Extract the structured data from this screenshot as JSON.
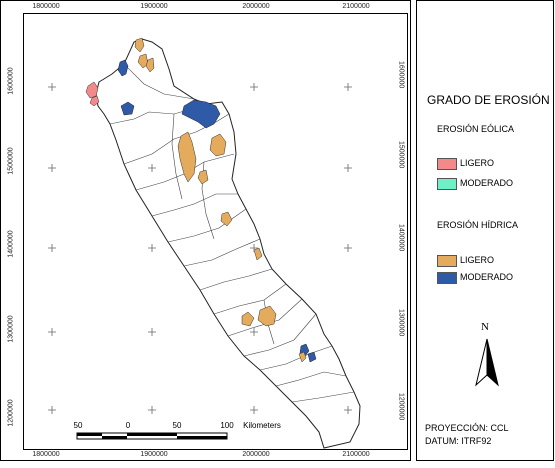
{
  "map": {
    "grid_x_labels": [
      "1800000",
      "1900000",
      "2000000",
      "2100000"
    ],
    "grid_y_labels": [
      "1600000",
      "1500000",
      "1400000",
      "1300000",
      "1200000"
    ],
    "scale_bar": {
      "labels": [
        "50",
        "0",
        "50",
        "100"
      ],
      "unit": "Kilometers"
    }
  },
  "legend": {
    "title": "GRADO DE EROSIÓN",
    "eolica": {
      "title": "EROSIÓN EÓLICA",
      "items": [
        {
          "label": "LIGERO",
          "color": "#f28a8c"
        },
        {
          "label": "MODERADO",
          "color": "#6ff0c6"
        }
      ]
    },
    "hidrica": {
      "title": "EROSIÓN HÍDRICA",
      "items": [
        {
          "label": "LIGERO",
          "color": "#e3ab5b"
        },
        {
          "label": "MODERADO",
          "color": "#2f5aa8"
        }
      ]
    },
    "north_label": "N",
    "projection": "PROYECCIÓN: CCL",
    "datum": "DATUM: ITRF92"
  }
}
